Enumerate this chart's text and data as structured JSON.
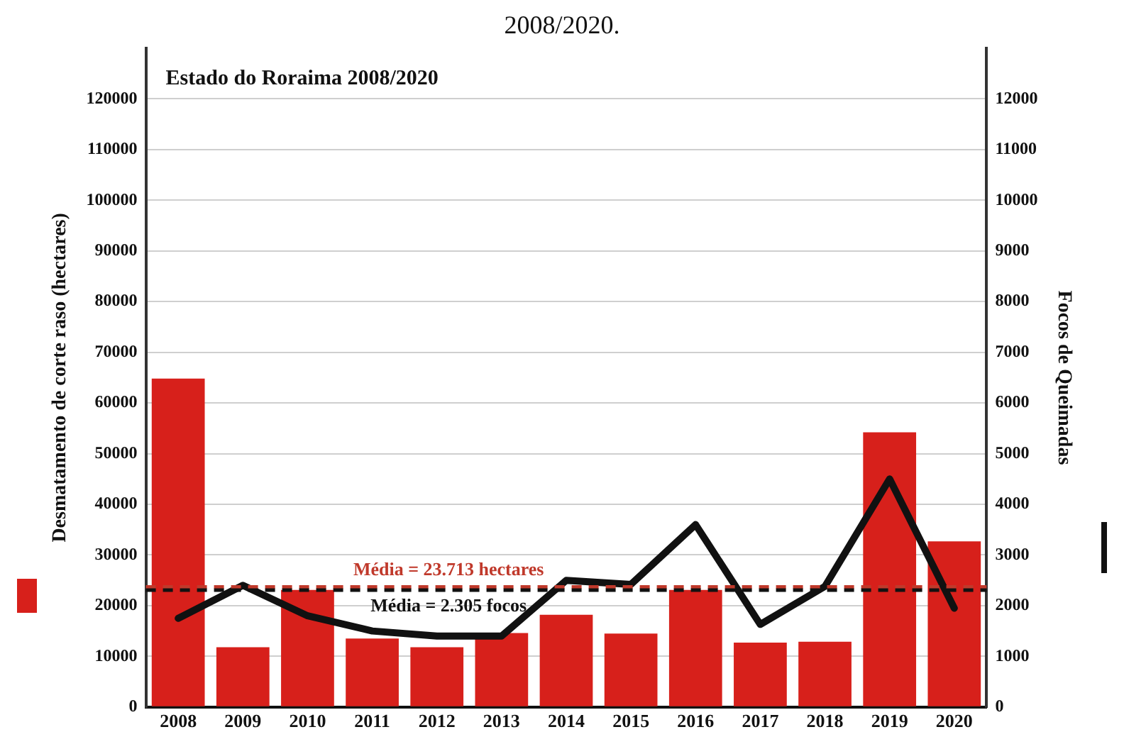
{
  "chart_data": {
    "type": "bar",
    "title": "Estado do Roraima 2008/2020",
    "ylabel": "Desmatamento de corte raso (hectares)",
    "y2label": "Focos de Queimadas",
    "annotations": [
      "2008/2020."
    ],
    "categories": [
      "2008",
      "2009",
      "2010",
      "2011",
      "2012",
      "2013",
      "2014",
      "2015",
      "2016",
      "2017",
      "2018",
      "2019",
      "2020"
    ],
    "series": [
      {
        "color": "#d7201b",
        "values": [
          64800,
          11800,
          23100,
          13500,
          11800,
          14600,
          18200,
          14500,
          23100,
          12700,
          12900,
          54200,
          32700
        ]
      },
      {
        "type": "line",
        "axis": "y2",
        "color": "#111111",
        "values": [
          1750,
          2400,
          1800,
          1500,
          1400,
          1400,
          2500,
          2420,
          3600,
          1630,
          2380,
          4500,
          1950
        ]
      }
    ],
    "ylim": [
      0,
      130000
    ],
    "yticks": [
      0,
      10000,
      20000,
      30000,
      40000,
      50000,
      60000,
      70000,
      80000,
      90000,
      100000,
      110000,
      120000
    ],
    "y2lim": [
      0,
      13000
    ],
    "y2ticks": [
      0,
      1000,
      2000,
      3000,
      4000,
      5000,
      6000,
      7000,
      8000,
      9000,
      10000,
      11000,
      12000
    ],
    "ref_lines": [
      {
        "axis": "y",
        "value": 23713,
        "label": "Média = 23.713 hectares",
        "color": "#c0392b",
        "line_style": "dashed"
      },
      {
        "axis": "y2",
        "value": 2305,
        "label": "Média = 2.305 focos",
        "color": "#111111",
        "line_style": "dashed"
      }
    ],
    "grid": "y",
    "legend": false,
    "marker": "none",
    "line_style": "solid"
  }
}
